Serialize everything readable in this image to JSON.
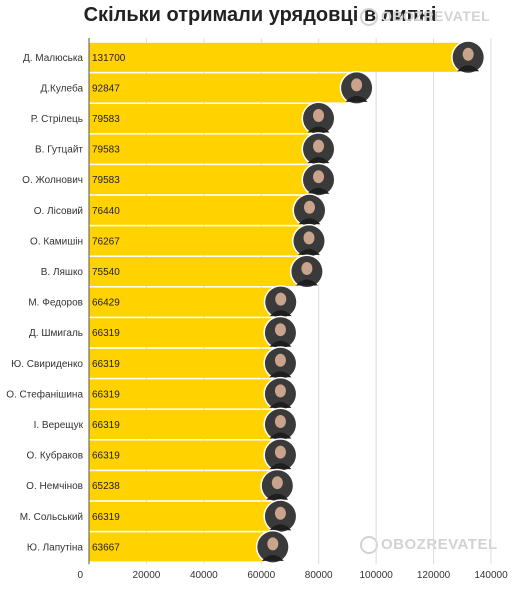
{
  "header": {
    "title": "Скільки отримали урядовці в липні",
    "watermark": "OBOZREVATEL"
  },
  "colors": {
    "bar": "#FFD200",
    "grid": "#dddddd",
    "axis": "#555555",
    "avatar_bg": "#3a3a3a"
  },
  "chart_data": {
    "type": "bar",
    "orientation": "horizontal",
    "title": "Скільки отримали урядовці в липні",
    "xlabel": "",
    "ylabel": "",
    "xlim": [
      0,
      140000
    ],
    "xticks": [
      0,
      20000,
      40000,
      60000,
      80000,
      100000,
      120000,
      140000
    ],
    "grid": true,
    "categories": [
      "Д. Малюська",
      "Д.Кулеба",
      "Р. Стрілець",
      "В. Гутцайт",
      "О. Жолнович",
      "О. Лісовий",
      "О. Камишін",
      "В. Ляшко",
      "М. Федоров",
      "Д. Шмигаль",
      "Ю. Свириденко",
      "О. Стефанішина",
      "І. Верещук",
      "О. Кубраков",
      "О. Немчінов",
      "М. Сольський",
      "Ю. Лапутіна"
    ],
    "values": [
      131700,
      92847,
      79583,
      79583,
      79583,
      76440,
      76267,
      75540,
      66429,
      66319,
      66319,
      66319,
      66319,
      66319,
      65238,
      66319,
      63667
    ]
  }
}
